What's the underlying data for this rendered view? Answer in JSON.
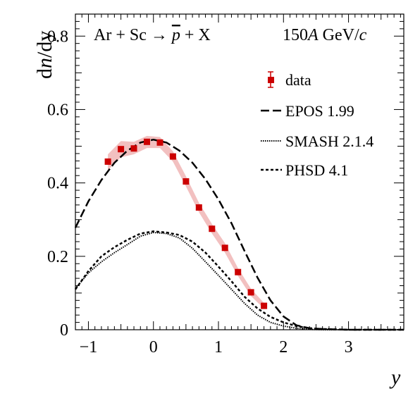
{
  "chart_data": {
    "type": "line",
    "title": "",
    "reaction_label": {
      "prefix": "Ar + Sc →",
      "particle": "p",
      "suffix": "+ X"
    },
    "energy_label": {
      "value": "150",
      "unit_italic": "A",
      "unit_rest": " GeV/",
      "c": "c"
    },
    "xlabel": "y",
    "ylabel": {
      "d": "d",
      "n": "n",
      "rest": "/dy"
    },
    "xlim": [
      -1.2,
      3.85
    ],
    "ylim": [
      0,
      0.86
    ],
    "x_ticks": [
      -1,
      0,
      1,
      2,
      3
    ],
    "x_tick_labels": [
      "−1",
      "0",
      "1",
      "2",
      "3"
    ],
    "y_ticks": [
      0,
      0.2,
      0.4,
      0.6,
      0.8
    ],
    "y_tick_labels": [
      "0",
      "0.2",
      "0.4",
      "0.6",
      "0.8"
    ],
    "legend_position": "top-right",
    "legend": [
      {
        "label": "data",
        "marker": "square"
      },
      {
        "label": "EPOS 1.99",
        "style": "long-dash"
      },
      {
        "label": "SMASH 2.1.4",
        "style": "dotted"
      },
      {
        "label": "PHSD 4.1",
        "style": "short-dash"
      }
    ],
    "series": [
      {
        "name": "data",
        "type": "scatter",
        "color": "#cc0000",
        "band_color": "#f2c0c0",
        "x": [
          -0.7,
          -0.5,
          -0.3,
          -0.1,
          0.1,
          0.3,
          0.5,
          0.7,
          0.9,
          1.1,
          1.3,
          1.5,
          1.7
        ],
        "y": [
          0.458,
          0.492,
          0.494,
          0.512,
          0.51,
          0.472,
          0.404,
          0.333,
          0.275,
          0.223,
          0.157,
          0.102,
          0.065
        ],
        "band_low": [
          0.435,
          0.47,
          0.478,
          0.495,
          0.495,
          0.458,
          0.39,
          0.32,
          0.262,
          0.21,
          0.146,
          0.092,
          0.057
        ],
        "band_high": [
          0.478,
          0.514,
          0.512,
          0.528,
          0.525,
          0.486,
          0.418,
          0.346,
          0.288,
          0.236,
          0.168,
          0.112,
          0.073
        ]
      },
      {
        "name": "EPOS 1.99",
        "type": "line",
        "style": "long-dash",
        "color": "#000000",
        "x": [
          -1.2,
          -1.0,
          -0.8,
          -0.6,
          -0.4,
          -0.2,
          0.0,
          0.2,
          0.4,
          0.6,
          0.8,
          1.0,
          1.2,
          1.4,
          1.6,
          1.8,
          2.0,
          2.2,
          2.4,
          2.6,
          2.8,
          3.0,
          3.5,
          3.85
        ],
        "y": [
          0.278,
          0.35,
          0.408,
          0.455,
          0.488,
          0.51,
          0.518,
          0.51,
          0.488,
          0.455,
          0.41,
          0.355,
          0.29,
          0.215,
          0.142,
          0.08,
          0.036,
          0.012,
          0.004,
          0.002,
          0.001,
          0.0,
          0.0,
          0.0
        ]
      },
      {
        "name": "SMASH 2.1.4",
        "type": "line",
        "style": "dotted",
        "color": "#000000",
        "x": [
          -1.2,
          -1.0,
          -0.8,
          -0.6,
          -0.4,
          -0.2,
          0.0,
          0.2,
          0.4,
          0.6,
          0.8,
          1.0,
          1.2,
          1.4,
          1.6,
          1.8,
          2.0,
          2.2,
          2.4,
          2.6,
          2.8,
          3.0,
          3.5,
          3.85
        ],
        "y": [
          0.112,
          0.155,
          0.185,
          0.21,
          0.232,
          0.255,
          0.265,
          0.262,
          0.25,
          0.222,
          0.185,
          0.148,
          0.11,
          0.072,
          0.04,
          0.02,
          0.01,
          0.004,
          0.001,
          0.0,
          0.0,
          0.0,
          0.0,
          0.0
        ]
      },
      {
        "name": "PHSD 4.1",
        "type": "line",
        "style": "short-dash",
        "color": "#000000",
        "x": [
          -1.2,
          -1.0,
          -0.8,
          -0.6,
          -0.4,
          -0.2,
          0.0,
          0.2,
          0.4,
          0.6,
          0.8,
          1.0,
          1.2,
          1.4,
          1.6,
          1.8,
          2.0,
          2.2,
          2.4,
          2.6,
          2.8,
          3.0,
          3.5,
          3.85
        ],
        "y": [
          0.11,
          0.16,
          0.2,
          0.225,
          0.245,
          0.262,
          0.268,
          0.265,
          0.258,
          0.24,
          0.21,
          0.172,
          0.132,
          0.09,
          0.058,
          0.035,
          0.02,
          0.01,
          0.004,
          0.002,
          0.001,
          0.0,
          0.0,
          0.0
        ]
      }
    ]
  }
}
